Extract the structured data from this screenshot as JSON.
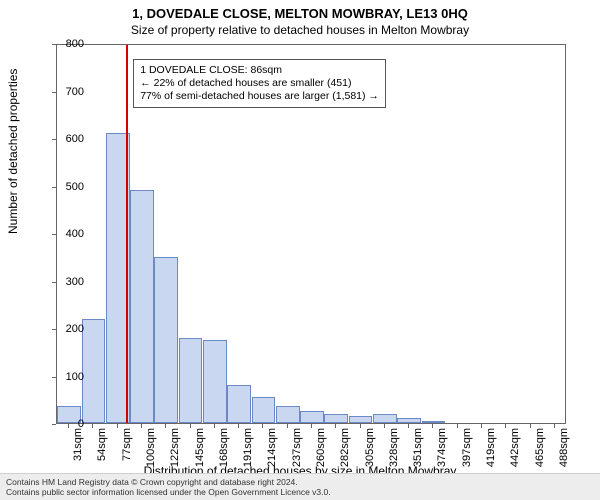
{
  "header": {
    "title1": "1, DOVEDALE CLOSE, MELTON MOWBRAY, LE13 0HQ",
    "title2": "Size of property relative to detached houses in Melton Mowbray"
  },
  "chart": {
    "type": "histogram",
    "ylabel": "Number of detached properties",
    "xlabel": "Distribution of detached houses by size in Melton Mowbray",
    "ylim": [
      0,
      800
    ],
    "ytick_step": 100,
    "background_color": "#ffffff",
    "border_color": "#666666",
    "bar_fill": "#c9d7f0",
    "bar_stroke": "#6b88c7",
    "refline_color": "#d40000",
    "refline_value": 86,
    "label_fontsize": 12,
    "tick_fontsize": 11,
    "title_fontsize": 13,
    "xticks": [
      "31sqm",
      "54sqm",
      "77sqm",
      "100sqm",
      "122sqm",
      "145sqm",
      "168sqm",
      "191sqm",
      "214sqm",
      "237sqm",
      "260sqm",
      "282sqm",
      "305sqm",
      "328sqm",
      "351sqm",
      "374sqm",
      "397sqm",
      "419sqm",
      "442sqm",
      "465sqm",
      "488sqm"
    ],
    "bar_values": [
      35,
      220,
      610,
      490,
      350,
      180,
      175,
      80,
      55,
      35,
      25,
      20,
      15,
      20,
      10,
      5,
      0,
      0,
      0,
      0,
      0
    ],
    "yticks": [
      0,
      100,
      200,
      300,
      400,
      500,
      600,
      700,
      800
    ]
  },
  "annotation": {
    "line1": "1 DOVEDALE CLOSE: 86sqm",
    "line2": "← 22% of detached houses are smaller (451)",
    "line3": "77% of semi-detached houses are larger (1,581) →"
  },
  "footer": {
    "line1": "Contains HM Land Registry data © Crown copyright and database right 2024.",
    "line2": "Contains public sector information licensed under the Open Government Licence v3.0."
  }
}
